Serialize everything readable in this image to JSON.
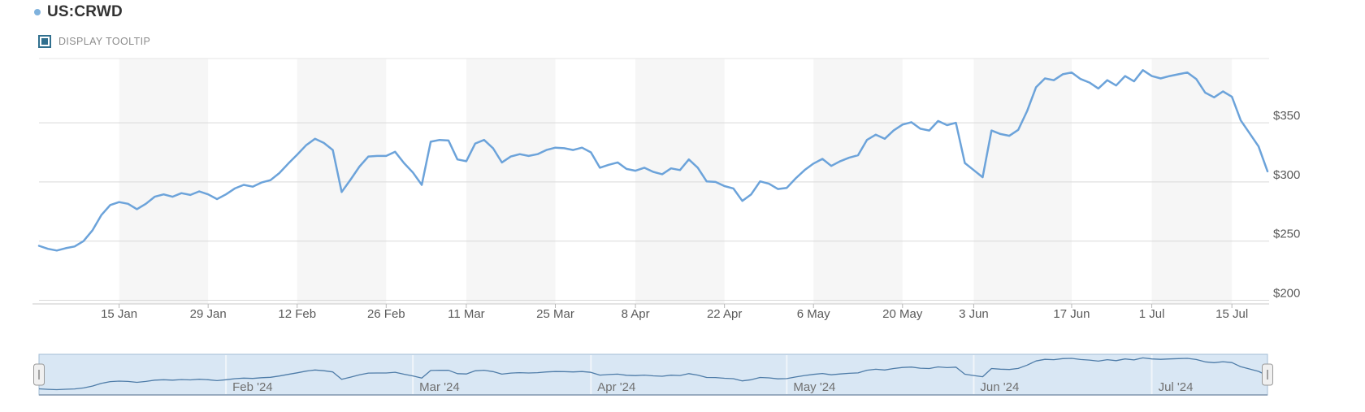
{
  "header": {
    "symbol": "US:CRWD",
    "legend_dot_color": "#7fb2dd"
  },
  "controls": {
    "tooltip_label": "DISPLAY TOOLTIP",
    "checked": true,
    "checkbox_color": "#31708f"
  },
  "colors": {
    "price_line": "#6ca3da",
    "nav_line": "#4e7ca8",
    "nav_fill": "#d9e7f4",
    "nav_border": "#a3bcd4",
    "nav_border_bottom": "#8096ad",
    "grid_band": "#f6f6f6",
    "gridline": "#d9d9d9",
    "axis_line": "#c9c9c9",
    "tick_mark": "#b8b8b8",
    "axis_text": "#5a5a5a",
    "nav_text": "#707070",
    "top_border": "#e5e5e5",
    "month_gridline": "#f0f5fa",
    "handle_fill": "#f0f0f0",
    "handle_border": "#999999",
    "handle_grip": "#888888"
  },
  "chart_data": {
    "type": "line",
    "title": "US:CRWD",
    "series": [
      {
        "name": "US:CRWD",
        "values": [
          246,
          243.5,
          242,
          244,
          245.5,
          250,
          259,
          272,
          280.5,
          283,
          281.5,
          277,
          281.5,
          287.5,
          289.5,
          287.5,
          290.5,
          289,
          292,
          289.5,
          285.5,
          289.5,
          294.5,
          297.5,
          296,
          299.5,
          301.5,
          307.5,
          315.5,
          323,
          331,
          336.5,
          333,
          327,
          291.5,
          302,
          313,
          321.5,
          322,
          322,
          325.5,
          316,
          308,
          297.5,
          334,
          335.5,
          335,
          319,
          317.5,
          332.5,
          335.5,
          328.5,
          316.5,
          321.5,
          323.5,
          322,
          323.5,
          327,
          329,
          328.5,
          327,
          329,
          325,
          312,
          314.5,
          316.5,
          311,
          309.5,
          312,
          308.5,
          306.5,
          311.5,
          310,
          319,
          312,
          300.5,
          300,
          296.5,
          294.5,
          284,
          289.5,
          300.5,
          298.5,
          294,
          295,
          303,
          310,
          315.5,
          319.5,
          313.5,
          317.5,
          320.5,
          322.5,
          335.5,
          340,
          336.5,
          343.5,
          348.5,
          350.5,
          345,
          343.5,
          351.5,
          348,
          350,
          316,
          310,
          304,
          343.5,
          340.5,
          339,
          344,
          360,
          380,
          387.5,
          386,
          391,
          392.5,
          387,
          384,
          379,
          386,
          381.5,
          389.5,
          385,
          394.5,
          389.5,
          387.5,
          389.5,
          391,
          392.5,
          387,
          375.5,
          371.5,
          376.5,
          372,
          352,
          341,
          330,
          309
        ]
      }
    ],
    "x_axis": {
      "unit": "trading-day",
      "points_total": 139,
      "tick_labels": [
        "15 Jan",
        "29 Jan",
        "12 Feb",
        "26 Feb",
        "11 Mar",
        "25 Mar",
        "8 Apr",
        "22 Apr",
        "6 May",
        "20 May",
        "3 Jun",
        "17 Jun",
        "1 Jul",
        "15 Jul"
      ],
      "tick_days": [
        9,
        19,
        29,
        39,
        48,
        58,
        67,
        77,
        87,
        97,
        105,
        116,
        125,
        134
      ]
    },
    "y_axis": {
      "side": "right",
      "tick_labels": [
        "$200",
        "$250",
        "$300",
        "$350"
      ],
      "tick_values": [
        200,
        250,
        300,
        350
      ],
      "visible_range": [
        196,
        406
      ]
    },
    "grid": true,
    "legend_position": "top-left",
    "navigator": {
      "month_labels": [
        "Feb '24",
        "Mar '24",
        "Apr '24",
        "May '24",
        "Jun '24",
        "Jul '24"
      ],
      "month_days": [
        21,
        42,
        62,
        84,
        105,
        125
      ],
      "selected_range": "full"
    }
  }
}
